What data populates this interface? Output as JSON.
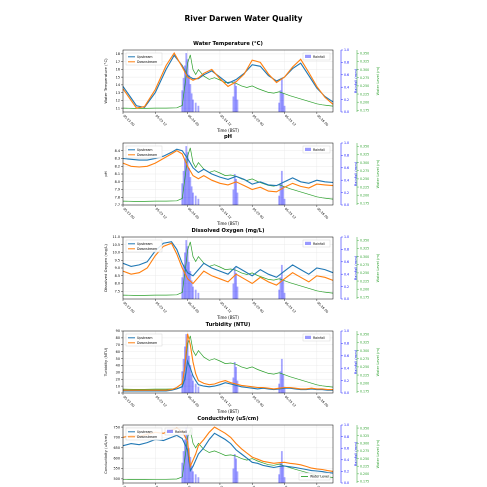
{
  "suptitle": "River Darwen Water Quality",
  "shared": {
    "xlabel": "Time (BST)",
    "x_ticks": [
      "05-23 00",
      "05-23 12",
      "05-24 00",
      "05-24 12",
      "05-25 00",
      "05-25 12",
      "05-26 00"
    ],
    "rain_label": "Rainfall (mm)",
    "rain_ticks": [
      "0.0",
      "0.2",
      "0.4",
      "0.6",
      "0.8",
      "1.0"
    ],
    "level_label": "Water Level (m)",
    "level_ticks": [
      "0.175",
      "0.200",
      "0.225",
      "0.250",
      "0.275",
      "0.300",
      "0.325",
      "0.350"
    ],
    "legend_upstream": "Upstream",
    "legend_downstream": "Downstream",
    "legend_rainfall": "Rainfall",
    "legend_level": "Water Level"
  },
  "colors": {
    "upstream": "#1f77b4",
    "downstream": "#ff7f0e",
    "level": "#2ca02c",
    "rain": "#0000ff",
    "grid": "#e6e6e6"
  },
  "chart_data": [
    {
      "type": "line",
      "title": "Water Temperature (°C)",
      "ylabel": "Water Temperature (°C)",
      "ylim": [
        10.5,
        18.5
      ],
      "yticks": [
        "11",
        "12",
        "13",
        "14",
        "15",
        "16",
        "17",
        "18"
      ],
      "xlim": [
        0,
        78
      ],
      "rain_legend_pos": "top-right",
      "series": [
        {
          "name": "Upstream",
          "x": [
            0,
            3,
            5,
            8,
            12,
            16,
            19,
            22,
            24,
            26,
            28,
            30,
            33,
            36,
            39,
            42,
            45,
            48,
            51,
            54,
            57,
            60,
            63,
            66,
            69,
            72,
            75,
            78
          ],
          "y": [
            13.8,
            12.3,
            11.3,
            11.1,
            13.0,
            16.0,
            17.8,
            16.5,
            15.2,
            14.8,
            14.8,
            15.3,
            15.8,
            15.0,
            14.2,
            14.7,
            15.5,
            16.6,
            16.4,
            15.2,
            14.5,
            15.0,
            16.1,
            16.8,
            15.2,
            13.6,
            12.5,
            11.8
          ]
        },
        {
          "name": "Downstream",
          "x": [
            0,
            3,
            5,
            8,
            12,
            16,
            19,
            22,
            24,
            26,
            28,
            30,
            33,
            36,
            39,
            42,
            45,
            48,
            51,
            54,
            57,
            60,
            63,
            66,
            69,
            72,
            75,
            78
          ],
          "y": [
            13.5,
            12.0,
            11.0,
            11.2,
            13.4,
            16.5,
            18.1,
            16.3,
            15.0,
            14.6,
            14.9,
            15.5,
            16.0,
            14.8,
            13.8,
            14.4,
            15.4,
            17.2,
            16.9,
            15.4,
            14.3,
            15.0,
            16.3,
            17.3,
            15.6,
            13.8,
            12.4,
            11.5
          ]
        }
      ]
    },
    {
      "type": "line",
      "title": "pH",
      "ylabel": "pH",
      "ylim": [
        7.7,
        8.5
      ],
      "yticks": [
        "7.7",
        "7.8",
        "7.9",
        "8.0",
        "8.1",
        "8.2",
        "8.3",
        "8.4"
      ],
      "xlim": [
        0,
        78
      ],
      "rain_legend_pos": "top-right",
      "series": [
        {
          "name": "Upstream",
          "x": [
            0,
            3,
            6,
            9,
            12,
            15,
            18,
            20,
            22,
            24,
            26,
            28,
            30,
            33,
            36,
            39,
            42,
            45,
            48,
            51,
            54,
            57,
            60,
            63,
            66,
            69,
            72,
            75,
            78
          ],
          "y": [
            8.3,
            8.29,
            8.28,
            8.28,
            8.3,
            8.33,
            8.38,
            8.42,
            8.4,
            8.3,
            8.18,
            8.12,
            8.16,
            8.1,
            8.06,
            8.03,
            8.07,
            8.03,
            7.97,
            8.0,
            7.96,
            7.95,
            8.0,
            8.05,
            8.0,
            7.98,
            8.02,
            8.0,
            7.99
          ]
        },
        {
          "name": "Downstream",
          "x": [
            0,
            3,
            6,
            9,
            12,
            15,
            18,
            20,
            22,
            24,
            26,
            28,
            30,
            33,
            36,
            39,
            42,
            45,
            48,
            51,
            54,
            57,
            60,
            63,
            66,
            69,
            72,
            75,
            78
          ],
          "y": [
            8.24,
            8.2,
            8.19,
            8.2,
            8.24,
            8.3,
            8.36,
            8.4,
            8.36,
            8.2,
            8.08,
            8.04,
            8.08,
            8.02,
            7.98,
            7.96,
            8.0,
            7.95,
            7.9,
            7.93,
            7.88,
            7.87,
            7.93,
            7.98,
            7.94,
            7.92,
            7.97,
            7.96,
            7.95
          ]
        }
      ]
    },
    {
      "type": "line",
      "title": "Dissolved Oxygen (mg/L)",
      "ylabel": "Dissolved Oxygen (mg/L)",
      "ylim": [
        7.0,
        11.0
      ],
      "yticks": [
        "7.5",
        "8.0",
        "8.5",
        "9.0",
        "9.5",
        "10.0",
        "10.5",
        "11.0"
      ],
      "xlim": [
        0,
        78
      ],
      "rain_legend_pos": "top-right",
      "series": [
        {
          "name": "Upstream",
          "x": [
            0,
            3,
            6,
            9,
            12,
            15,
            18,
            20,
            22,
            24,
            26,
            28,
            30,
            33,
            36,
            39,
            42,
            45,
            48,
            51,
            54,
            57,
            60,
            63,
            66,
            69,
            72,
            75,
            78
          ],
          "y": [
            9.3,
            9.1,
            9.2,
            9.4,
            10.1,
            10.6,
            10.7,
            10.2,
            9.3,
            8.7,
            8.5,
            8.9,
            9.3,
            9.0,
            8.8,
            8.6,
            9.1,
            8.8,
            8.5,
            8.9,
            8.6,
            8.4,
            8.8,
            9.2,
            8.9,
            8.6,
            9.0,
            8.9,
            8.7
          ]
        },
        {
          "name": "Downstream",
          "x": [
            0,
            3,
            6,
            9,
            12,
            15,
            18,
            20,
            22,
            24,
            26,
            28,
            30,
            33,
            36,
            39,
            42,
            45,
            48,
            51,
            54,
            57,
            60,
            63,
            66,
            69,
            72,
            75,
            78
          ],
          "y": [
            8.8,
            8.6,
            8.7,
            9.0,
            9.8,
            10.4,
            10.6,
            9.9,
            9.0,
            8.3,
            8.0,
            8.4,
            8.8,
            8.5,
            8.3,
            8.1,
            8.6,
            8.3,
            8.0,
            8.4,
            8.1,
            7.9,
            8.3,
            8.7,
            8.4,
            8.1,
            8.5,
            8.4,
            8.2
          ]
        }
      ]
    },
    {
      "type": "line",
      "title": "Turbidity (NTU)",
      "ylabel": "Turbidity (NTU)",
      "ylim": [
        0,
        90
      ],
      "yticks": [
        "0",
        "10",
        "20",
        "30",
        "40",
        "50",
        "60",
        "70",
        "80",
        "90"
      ],
      "xlim": [
        0,
        78
      ],
      "rain_legend_pos": "top-right",
      "series": [
        {
          "name": "Upstream",
          "x": [
            0,
            4,
            8,
            12,
            16,
            18,
            20,
            22,
            23,
            24,
            25,
            26,
            27,
            28,
            30,
            32,
            34,
            36,
            38,
            40,
            42,
            44,
            46,
            48,
            50,
            52,
            54,
            56,
            58,
            60,
            62,
            64,
            66,
            68,
            70,
            72,
            74,
            76,
            78
          ],
          "y": [
            3,
            3,
            3,
            3,
            3,
            4,
            6,
            9,
            20,
            46,
            36,
            25,
            18,
            12,
            10,
            9,
            10,
            12,
            15,
            13,
            11,
            9,
            8,
            7,
            6,
            7,
            6,
            5,
            6,
            7,
            7,
            6,
            5,
            5,
            6,
            5,
            5,
            4,
            4
          ]
        },
        {
          "name": "Downstream",
          "x": [
            0,
            4,
            8,
            12,
            16,
            18,
            20,
            22,
            23,
            24,
            25,
            26,
            27,
            28,
            30,
            32,
            34,
            36,
            38,
            40,
            42,
            44,
            46,
            48,
            50,
            52,
            54,
            56,
            58,
            60,
            62,
            64,
            66,
            68,
            70,
            72,
            74,
            76,
            78
          ],
          "y": [
            4,
            4,
            4,
            4,
            4,
            5,
            8,
            14,
            38,
            86,
            70,
            45,
            28,
            18,
            14,
            12,
            13,
            16,
            18,
            15,
            13,
            11,
            10,
            9,
            8,
            8,
            7,
            6,
            7,
            8,
            8,
            7,
            6,
            6,
            7,
            6,
            6,
            5,
            5
          ]
        }
      ]
    },
    {
      "type": "line",
      "title": "Conductivity (uS/cm)",
      "ylabel": "Conductivity (uS/cm)",
      "ylim": [
        480,
        760
      ],
      "yticks": [
        "500",
        "550",
        "600",
        "650",
        "700",
        "750"
      ],
      "xlim": [
        0,
        78
      ],
      "rain_legend_pos": "top-left",
      "level_legend_pos": "bottom-right",
      "series": [
        {
          "name": "Upstream",
          "x": [
            0,
            3,
            6,
            9,
            12,
            15,
            18,
            20,
            22,
            24,
            25,
            26,
            27,
            28,
            30,
            32,
            34,
            36,
            38,
            40,
            42,
            44,
            46,
            48,
            50,
            52,
            54,
            56,
            58,
            60,
            62,
            64,
            66,
            68,
            70,
            72,
            74,
            76,
            78
          ],
          "y": [
            660,
            670,
            665,
            675,
            690,
            685,
            700,
            710,
            695,
            640,
            540,
            560,
            590,
            620,
            650,
            690,
            720,
            705,
            690,
            670,
            640,
            620,
            600,
            580,
            575,
            565,
            560,
            555,
            560,
            562,
            558,
            555,
            550,
            545,
            540,
            538,
            535,
            530,
            528
          ]
        },
        {
          "name": "Downstream",
          "x": [
            0,
            3,
            6,
            9,
            12,
            15,
            18,
            20,
            22,
            24,
            25,
            26,
            27,
            28,
            30,
            32,
            34,
            36,
            38,
            40,
            42,
            44,
            46,
            48,
            50,
            52,
            54,
            56,
            58,
            60,
            62,
            64,
            66,
            68,
            70,
            72,
            74,
            76,
            78
          ],
          "y": [
            700,
            710,
            705,
            715,
            725,
            720,
            735,
            745,
            730,
            680,
            560,
            590,
            620,
            660,
            690,
            725,
            750,
            735,
            720,
            700,
            670,
            645,
            625,
            605,
            595,
            585,
            580,
            575,
            578,
            580,
            575,
            572,
            568,
            560,
            552,
            548,
            545,
            540,
            536
          ]
        }
      ]
    }
  ],
  "rainfall": {
    "x": [
      22,
      22.5,
      23,
      23.5,
      24,
      24.5,
      25,
      25.5,
      26,
      27,
      28,
      41,
      41.5,
      42,
      42.5,
      58,
      58.5,
      59,
      59.5,
      60
    ],
    "mm": [
      0.35,
      0.55,
      0.75,
      0.95,
      0.85,
      0.6,
      0.45,
      0.3,
      0.2,
      0.15,
      0.1,
      0.25,
      0.5,
      0.42,
      0.2,
      0.15,
      0.35,
      0.55,
      0.3,
      0.1
    ]
  },
  "water_level": {
    "ylim": [
      0.17,
      0.36
    ],
    "x": [
      0,
      4,
      8,
      12,
      16,
      20,
      22,
      23,
      24,
      25,
      26,
      27,
      28,
      29,
      30,
      32,
      34,
      36,
      38,
      40,
      42,
      44,
      46,
      48,
      50,
      52,
      54,
      56,
      58,
      60,
      62,
      64,
      66,
      68,
      70,
      72,
      74,
      76,
      78
    ],
    "y": [
      0.182,
      0.181,
      0.181,
      0.182,
      0.182,
      0.183,
      0.19,
      0.25,
      0.32,
      0.345,
      0.3,
      0.285,
      0.3,
      0.29,
      0.28,
      0.27,
      0.275,
      0.268,
      0.26,
      0.262,
      0.258,
      0.25,
      0.245,
      0.25,
      0.242,
      0.236,
      0.23,
      0.228,
      0.232,
      0.226,
      0.22,
      0.215,
      0.21,
      0.205,
      0.2,
      0.195,
      0.192,
      0.19,
      0.188
    ]
  }
}
